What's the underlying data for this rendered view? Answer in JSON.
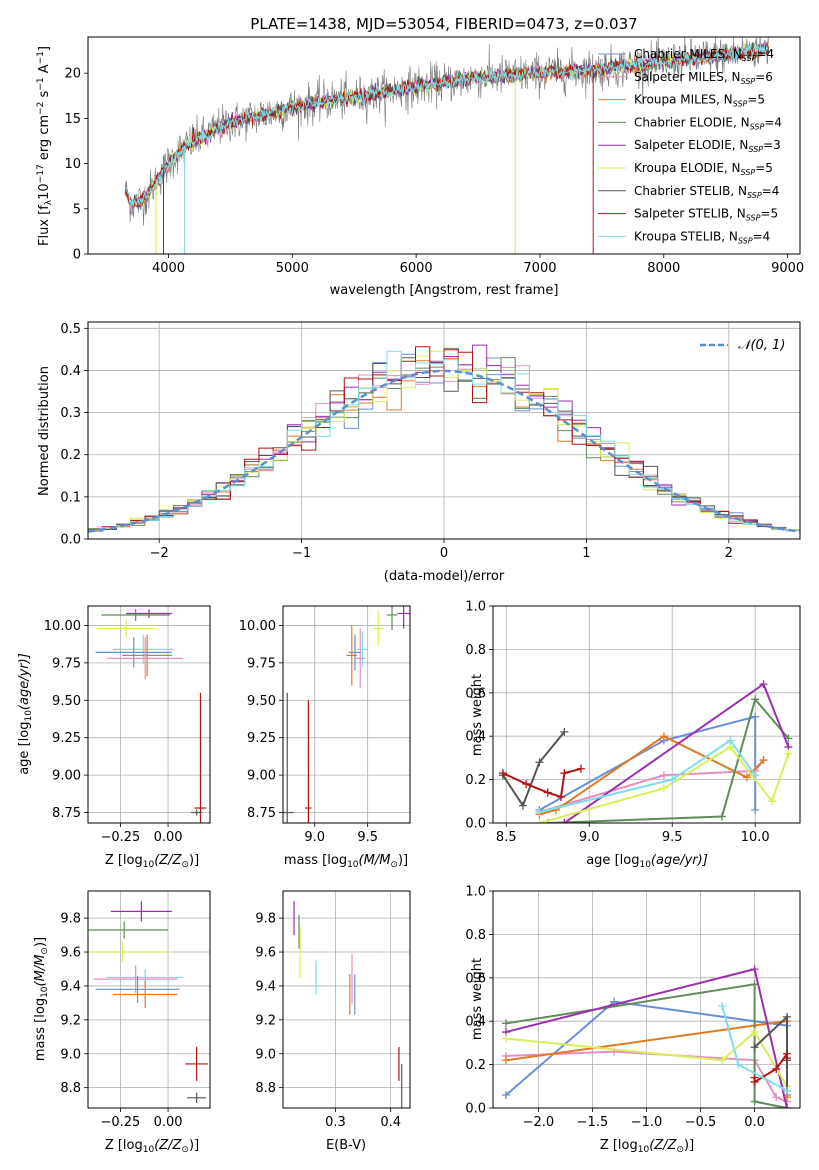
{
  "colors": {
    "chab_miles": "#6a8fd8",
    "salp_miles": "#e58fc0",
    "krou_miles": "#e07b25",
    "chab_elodie": "#5f8c5a",
    "salp_elodie": "#9b2fb0",
    "krou_elodie": "#d9ef5a",
    "chab_stelib": "#555555",
    "salp_stelib": "#b01515",
    "krou_stelib": "#7fdde8",
    "gauss": "#5b8fd0",
    "grid": "#b0b0b0"
  },
  "chart_data": [
    {
      "id": "spectrum",
      "type": "line",
      "title": "PLATE=1438, MJD=53054, FIBERID=0473, z=0.037",
      "xlabel": "wavelength [Angstrom, rest frame]",
      "ylabel_pre": "Flux [f",
      "ylabel_sub": "λ",
      "ylabel_post": "10",
      "ylabel_sup1": "−17",
      "ylabel_mid": " erg cm",
      "ylabel_sup2": "−2",
      "ylabel_mid2": " s",
      "ylabel_sup3": "−1",
      "ylabel_end": " A",
      "ylabel_sup4": "−1",
      "ylabel_close": "]",
      "xlim": [
        3350,
        9100
      ],
      "ylim": [
        0,
        24
      ],
      "xticks": [
        4000,
        5000,
        6000,
        7000,
        8000,
        9000
      ],
      "yticks": [
        0,
        5,
        10,
        15,
        20
      ],
      "grid": false,
      "legend_position": "top-right",
      "legend": [
        {
          "lib": "Chabrier MILES",
          "n": "4",
          "color": "chab_miles"
        },
        {
          "lib": "Salpeter MILES",
          "n": "6",
          "color": "salp_miles"
        },
        {
          "lib": "Kroupa MILES",
          "n": "5",
          "color": "krou_miles"
        },
        {
          "lib": "Chabrier ELODIE",
          "n": "4",
          "color": "chab_elodie"
        },
        {
          "lib": "Salpeter ELODIE",
          "n": "3",
          "color": "salp_elodie"
        },
        {
          "lib": "Kroupa ELODIE",
          "n": "5",
          "color": "krou_elodie"
        },
        {
          "lib": "Chabrier STELIB",
          "n": "4",
          "color": "chab_stelib"
        },
        {
          "lib": "Salpeter STELIB",
          "n": "5",
          "color": "salp_stelib"
        },
        {
          "lib": "Kroupa STELIB",
          "n": "4",
          "color": "krou_stelib"
        }
      ],
      "legend_nsub": "SSP",
      "continuum": {
        "x": [
          3650,
          3700,
          3800,
          3900,
          4000,
          4100,
          4200,
          4300,
          4400,
          4500,
          4700,
          5000,
          5300,
          5600,
          6000,
          6500,
          7000,
          7500,
          8000,
          8500,
          8850
        ],
        "y": [
          7,
          5.5,
          6,
          8,
          10,
          11.5,
          12.5,
          13,
          14,
          14.5,
          15.2,
          16.2,
          17,
          17.5,
          18.5,
          19.5,
          20,
          20.5,
          21.2,
          22,
          22.8
        ]
      }
    },
    {
      "id": "hist",
      "type": "line",
      "xlabel": "(data-model)/error",
      "ylabel": "Normed distribution",
      "xlim": [
        -2.5,
        2.5
      ],
      "ylim": [
        0,
        0.515
      ],
      "xticks": [
        -2,
        -1,
        0,
        1,
        2
      ],
      "yticks": [
        0.0,
        0.1,
        0.2,
        0.3,
        0.4,
        0.5
      ],
      "xticklabels": [
        "−2",
        "−1",
        "0",
        "1",
        "2"
      ],
      "yticklabels": [
        "0.0",
        "0.1",
        "0.2",
        "0.3",
        "0.4",
        "0.5"
      ],
      "grid": true,
      "legend_position": "top-right",
      "legend_label": "𝒩(0, 1)",
      "bin_width": 0.1,
      "bin_start": -2.5
    },
    {
      "id": "age_z",
      "type": "scatter",
      "xlabel_pre": "Z [log",
      "xlabel_sub": "10",
      "xlabel_post": "(Z/Z",
      "xlabel_sub2": "⊙",
      "xlabel_end": ")]",
      "ylabel_pre": "age  [log",
      "ylabel_sub": "10",
      "ylabel_post": "(age/yr)]",
      "xlim": [
        -0.42,
        0.22
      ],
      "ylim": [
        8.68,
        10.13
      ],
      "xticks": [
        -0.25,
        0.0
      ],
      "xticklabels": [
        "−0.25",
        "0.00"
      ],
      "yticks": [
        8.75,
        9.0,
        9.25,
        9.5,
        9.75,
        10.0
      ],
      "yticklabels": [
        "8.75",
        "9.00",
        "9.25",
        "9.50",
        "9.75",
        "10.00"
      ],
      "grid": true,
      "points": [
        {
          "x": -0.1,
          "y": 10.08,
          "xerr": 0.12,
          "yerr": 0.03,
          "color": "salp_elodie"
        },
        {
          "x": -0.17,
          "y": 10.07,
          "xerr": 0.18,
          "yerr": 0.04,
          "color": "chab_elodie"
        },
        {
          "x": -0.22,
          "y": 9.98,
          "xerr": 0.15,
          "yerr": 0.06,
          "color": "krou_elodie"
        },
        {
          "x": -0.13,
          "y": 9.84,
          "xerr": 0.16,
          "yerr": 0.1,
          "color": "krou_stelib"
        },
        {
          "x": -0.18,
          "y": 9.82,
          "xerr": 0.2,
          "yerr": 0.1,
          "color": "chab_miles"
        },
        {
          "x": -0.11,
          "y": 9.8,
          "xerr": 0.13,
          "yerr": 0.14,
          "color": "krou_miles"
        },
        {
          "x": -0.12,
          "y": 9.78,
          "xerr": 0.2,
          "yerr": 0.14,
          "color": "salp_miles"
        },
        {
          "x": 0.17,
          "y": 8.78,
          "xerr": 0.03,
          "yerr": 0.77,
          "color": "salp_stelib"
        },
        {
          "x": 0.15,
          "y": 8.75,
          "xerr": 0.03,
          "yerr": 0.02,
          "color": "chab_stelib"
        }
      ]
    },
    {
      "id": "age_mass",
      "type": "scatter",
      "xlabel_pre": "mass [log",
      "xlabel_sub": "10",
      "xlabel_post": "(M/M",
      "xlabel_sub2": "⊙",
      "xlabel_end": ")]",
      "xlim": [
        8.7,
        9.9
      ],
      "ylim": [
        8.68,
        10.13
      ],
      "xticks": [
        9.0,
        9.5
      ],
      "xticklabels": [
        "9.0",
        "9.5"
      ],
      "yticks": [
        8.75,
        9.0,
        9.25,
        9.5,
        9.75,
        10.0
      ],
      "yticklabels": [
        "8.75",
        "9.00",
        "9.25",
        "9.50",
        "9.75",
        "10.00"
      ],
      "grid": true,
      "points": [
        {
          "x": 9.84,
          "y": 10.08,
          "xerr": 0.06,
          "yerr": 0.1,
          "color": "salp_elodie"
        },
        {
          "x": 9.73,
          "y": 10.07,
          "xerr": 0.05,
          "yerr": 0.1,
          "color": "chab_elodie"
        },
        {
          "x": 9.6,
          "y": 9.98,
          "xerr": 0.05,
          "yerr": 0.12,
          "color": "krou_elodie"
        },
        {
          "x": 9.45,
          "y": 9.84,
          "xerr": 0.05,
          "yerr": 0.12,
          "color": "krou_stelib"
        },
        {
          "x": 9.38,
          "y": 9.82,
          "xerr": 0.06,
          "yerr": 0.12,
          "color": "chab_miles"
        },
        {
          "x": 9.35,
          "y": 9.8,
          "xerr": 0.05,
          "yerr": 0.2,
          "color": "krou_miles"
        },
        {
          "x": 9.43,
          "y": 9.78,
          "xerr": 0.05,
          "yerr": 0.2,
          "color": "salp_miles"
        },
        {
          "x": 8.94,
          "y": 8.78,
          "xerr": 0.03,
          "yerr": 0.72,
          "color": "salp_stelib"
        },
        {
          "x": 8.74,
          "y": 8.75,
          "xerr": 0.06,
          "yerr": 0.8,
          "color": "chab_stelib"
        }
      ]
    },
    {
      "id": "w_age",
      "type": "line",
      "xlabel_pre": "age  [log",
      "xlabel_sub": "10",
      "xlabel_post": "(age/yr)]",
      "ylabel": "mass weight",
      "xlim": [
        8.42,
        10.27
      ],
      "ylim": [
        0,
        1
      ],
      "xticks": [
        8.5,
        9.0,
        9.5,
        10.0
      ],
      "xticklabels": [
        "8.5",
        "9.0",
        "9.5",
        "10.0"
      ],
      "yticks": [
        0.0,
        0.2,
        0.4,
        0.6,
        0.8,
        1.0
      ],
      "yticklabels": [
        "0.0",
        "0.2",
        "0.4",
        "0.6",
        "0.8",
        "1.0"
      ],
      "grid": true,
      "series": [
        {
          "color": "chab_miles",
          "x": [
            8.7,
            9.45,
            10.0,
            10.0
          ],
          "y": [
            0.06,
            0.38,
            0.49,
            0.06
          ]
        },
        {
          "color": "salp_miles",
          "x": [
            8.7,
            9.45,
            10.0,
            10.05
          ],
          "y": [
            0.05,
            0.22,
            0.24,
            0.29
          ]
        },
        {
          "color": "krou_miles",
          "x": [
            8.7,
            8.8,
            9.45,
            9.95,
            10.05
          ],
          "y": [
            0.04,
            0.06,
            0.4,
            0.21,
            0.29
          ]
        },
        {
          "color": "chab_elodie",
          "x": [
            8.75,
            9.8,
            10.0,
            10.2
          ],
          "y": [
            0.0,
            0.03,
            0.57,
            0.39
          ]
        },
        {
          "color": "salp_elodie",
          "x": [
            8.85,
            10.05,
            10.2
          ],
          "y": [
            0.0,
            0.64,
            0.35
          ]
        },
        {
          "color": "krou_elodie",
          "x": [
            8.7,
            9.45,
            9.85,
            10.1,
            10.2
          ],
          "y": [
            0.0,
            0.16,
            0.35,
            0.1,
            0.32
          ]
        },
        {
          "color": "chab_stelib",
          "x": [
            8.48,
            8.6,
            8.7,
            8.85
          ],
          "y": [
            0.22,
            0.08,
            0.28,
            0.42
          ]
        },
        {
          "color": "salp_stelib",
          "x": [
            8.48,
            8.62,
            8.75,
            8.83,
            8.85,
            8.95
          ],
          "y": [
            0.23,
            0.18,
            0.14,
            0.12,
            0.23,
            0.25
          ]
        },
        {
          "color": "krou_stelib",
          "x": [
            8.7,
            9.5,
            9.85,
            10.0
          ],
          "y": [
            0.05,
            0.2,
            0.38,
            0.22
          ]
        }
      ]
    },
    {
      "id": "mass_z",
      "type": "scatter",
      "xlabel_pre": "Z [log",
      "xlabel_sub": "10",
      "xlabel_post": "(Z/Z",
      "xlabel_sub2": "⊙",
      "xlabel_end": ")]",
      "ylabel_pre": "mass [log",
      "ylabel_sub": "10",
      "ylabel_post": "(M/M",
      "ylabel_sub2": "⊙",
      "ylabel_end": ")]",
      "xlim": [
        -0.42,
        0.22
      ],
      "ylim": [
        8.68,
        9.96
      ],
      "xticks": [
        -0.25,
        0.0
      ],
      "xticklabels": [
        "−0.25",
        "0.00"
      ],
      "yticks": [
        8.8,
        9.0,
        9.2,
        9.4,
        9.6,
        9.8
      ],
      "yticklabels": [
        "8.8",
        "9.0",
        "9.2",
        "9.4",
        "9.6",
        "9.8"
      ],
      "grid": true,
      "points": [
        {
          "x": -0.14,
          "y": 9.84,
          "xerr": 0.16,
          "yerr": 0.06,
          "color": "salp_elodie"
        },
        {
          "x": -0.23,
          "y": 9.73,
          "xerr": 0.23,
          "yerr": 0.05,
          "color": "chab_elodie"
        },
        {
          "x": -0.24,
          "y": 9.6,
          "xerr": 0.25,
          "yerr": 0.06,
          "color": "krou_elodie"
        },
        {
          "x": -0.12,
          "y": 9.45,
          "xerr": 0.2,
          "yerr": 0.05,
          "color": "krou_stelib"
        },
        {
          "x": -0.17,
          "y": 9.44,
          "xerr": 0.22,
          "yerr": 0.08,
          "color": "salp_miles"
        },
        {
          "x": -0.16,
          "y": 9.38,
          "xerr": 0.22,
          "yerr": 0.08,
          "color": "chab_miles"
        },
        {
          "x": -0.12,
          "y": 9.35,
          "xerr": 0.17,
          "yerr": 0.08,
          "color": "krou_miles"
        },
        {
          "x": 0.15,
          "y": 8.94,
          "xerr": 0.06,
          "yerr": 0.1,
          "color": "salp_stelib"
        },
        {
          "x": 0.15,
          "y": 8.74,
          "xerr": 0.05,
          "yerr": 0.03,
          "color": "chab_stelib"
        }
      ]
    },
    {
      "id": "mass_ebv",
      "type": "scatter",
      "xlabel": "E(B-V)",
      "xlim": [
        0.205,
        0.435
      ],
      "ylim": [
        8.68,
        9.96
      ],
      "xticks": [
        0.3,
        0.4
      ],
      "xticklabels": [
        "0.3",
        "0.4"
      ],
      "yticks": [
        8.8,
        9.0,
        9.2,
        9.4,
        9.6,
        9.8
      ],
      "yticklabels": [
        "8.8",
        "9.0",
        "9.2",
        "9.4",
        "9.6",
        "9.8"
      ],
      "grid": true,
      "points": [
        {
          "x": 0.225,
          "y": 9.8,
          "xerr": 0.0,
          "yerr": 0.1,
          "color": "salp_elodie"
        },
        {
          "x": 0.234,
          "y": 9.72,
          "xerr": 0.0,
          "yerr": 0.1,
          "color": "chab_elodie"
        },
        {
          "x": 0.236,
          "y": 9.6,
          "xerr": 0.0,
          "yerr": 0.15,
          "color": "krou_elodie"
        },
        {
          "x": 0.265,
          "y": 9.45,
          "xerr": 0.0,
          "yerr": 0.1,
          "color": "krou_stelib"
        },
        {
          "x": 0.33,
          "y": 9.44,
          "xerr": 0.0,
          "yerr": 0.15,
          "color": "salp_miles"
        },
        {
          "x": 0.326,
          "y": 9.35,
          "xerr": 0.0,
          "yerr": 0.12,
          "color": "krou_miles"
        },
        {
          "x": 0.335,
          "y": 9.35,
          "xerr": 0.0,
          "yerr": 0.12,
          "color": "chab_miles"
        },
        {
          "x": 0.415,
          "y": 8.94,
          "xerr": 0.0,
          "yerr": 0.1,
          "color": "salp_stelib"
        },
        {
          "x": 0.42,
          "y": 8.74,
          "xerr": 0.0,
          "yerr": 0.2,
          "color": "chab_stelib"
        }
      ]
    },
    {
      "id": "w_z",
      "type": "line",
      "xlabel_pre": "Z [log",
      "xlabel_sub": "10",
      "xlabel_post": "(Z/Z",
      "xlabel_sub2": "⊙",
      "xlabel_end": ")]",
      "ylabel": "mass weight",
      "xlim": [
        -2.42,
        0.42
      ],
      "ylim": [
        0,
        1
      ],
      "xticks": [
        -2.0,
        -1.5,
        -1.0,
        -0.5,
        0.0
      ],
      "xticklabels": [
        "−2.0",
        "−1.5",
        "−1.0",
        "−0.5",
        "0.0"
      ],
      "yticks": [
        0.0,
        0.2,
        0.4,
        0.6,
        0.8,
        1.0
      ],
      "yticklabels": [
        "0.0",
        "0.2",
        "0.4",
        "0.6",
        "0.8",
        "1.0"
      ],
      "grid": true,
      "series": [
        {
          "color": "chab_miles",
          "x": [
            -2.3,
            -1.3,
            0.0,
            0.3,
            0.3
          ],
          "y": [
            0.06,
            0.49,
            0.4,
            0.38,
            0.06
          ]
        },
        {
          "color": "salp_miles",
          "x": [
            -2.3,
            -1.3,
            0.0,
            0.2,
            0.3
          ],
          "y": [
            0.24,
            0.26,
            0.22,
            0.05,
            0.03
          ]
        },
        {
          "color": "krou_miles",
          "x": [
            -2.3,
            0.0,
            0.3,
            0.3
          ],
          "y": [
            0.22,
            0.38,
            0.4,
            0.05
          ]
        },
        {
          "color": "chab_elodie",
          "x": [
            -2.3,
            0.0,
            0.0,
            0.3
          ],
          "y": [
            0.39,
            0.57,
            0.03,
            0.0
          ]
        },
        {
          "color": "salp_elodie",
          "x": [
            -2.3,
            0.0,
            0.3
          ],
          "y": [
            0.35,
            0.64,
            0.0
          ]
        },
        {
          "color": "krou_elodie",
          "x": [
            -2.3,
            -0.3,
            0.0,
            0.3
          ],
          "y": [
            0.32,
            0.22,
            0.35,
            0.1
          ]
        },
        {
          "color": "chab_stelib",
          "x": [
            0.0,
            0.3,
            0.3,
            0.3
          ],
          "y": [
            0.28,
            0.42,
            0.08,
            0.22
          ]
        },
        {
          "color": "salp_stelib",
          "x": [
            0.0,
            0.0,
            0.2,
            0.3,
            0.3
          ],
          "y": [
            0.14,
            0.12,
            0.18,
            0.25,
            0.23
          ]
        },
        {
          "color": "krou_stelib",
          "x": [
            -0.3,
            -0.15,
            0.3
          ],
          "y": [
            0.47,
            0.2,
            0.08
          ]
        }
      ]
    }
  ]
}
